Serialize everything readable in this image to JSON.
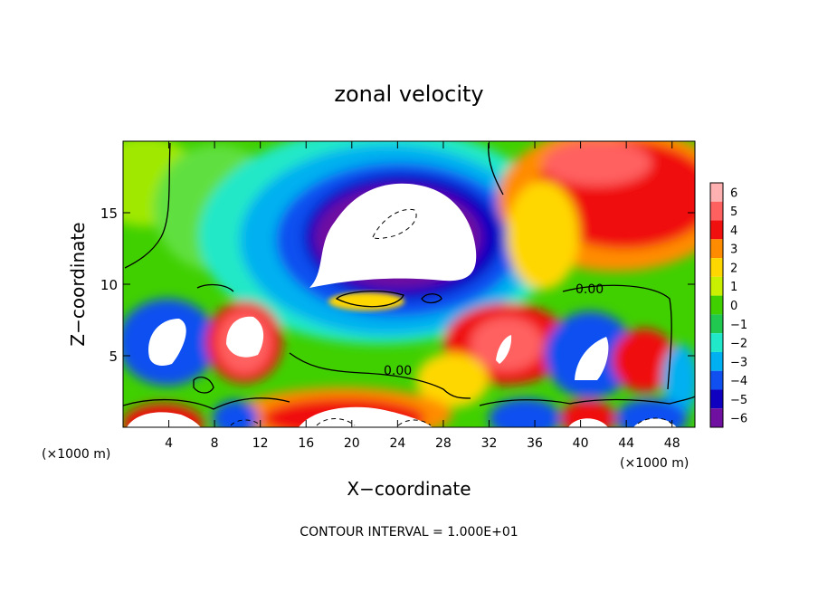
{
  "chart_data": {
    "type": "heatmap",
    "title": "zonal velocity",
    "xlabel": "X−coordinate",
    "ylabel": "Z−coordinate",
    "x_unit_left": "(×1000 m)",
    "x_unit_right": "(×1000 m)",
    "xlim": [
      0,
      50
    ],
    "ylim": [
      0,
      20
    ],
    "x_ticks": [
      "4",
      "8",
      "12",
      "16",
      "20",
      "24",
      "28",
      "32",
      "36",
      "40",
      "44",
      "48"
    ],
    "y_ticks": [
      "5",
      "10",
      "15"
    ],
    "colorbar": {
      "levels": [
        "6",
        "5",
        "4",
        "3",
        "2",
        "1",
        "0",
        "−1",
        "−2",
        "−3",
        "−4",
        "−5",
        "−6"
      ],
      "colors": [
        "#ffb0b0",
        "#ff6060",
        "#f01010",
        "#ff8c00",
        "#ffd700",
        "#c8f000",
        "#40d000",
        "#20c850",
        "#20e8c8",
        "#00b0f0",
        "#1050f0",
        "#1000c0",
        "#7010a0"
      ]
    },
    "contour_labels": [
      "0.00",
      "0.00"
    ],
    "note": "CONTOUR INTERVAL = 1.000E+01",
    "grid": false
  }
}
